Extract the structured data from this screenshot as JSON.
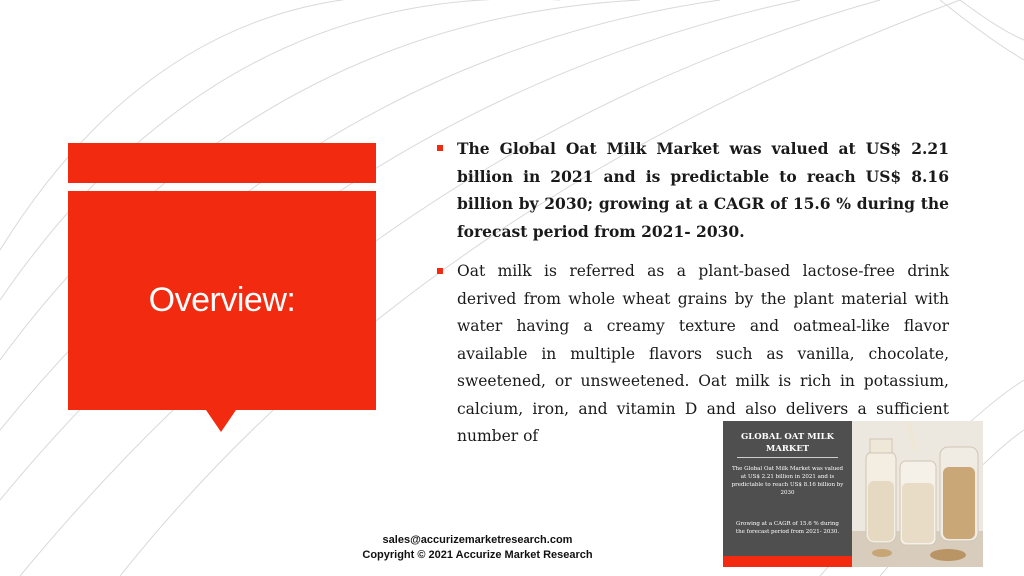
{
  "slide": {
    "title": "Overview:",
    "bullets": [
      "The Global Oat Milk Market was valued at US$ 2.21 billion in 2021 and is predictable to reach US$ 8.16 billion by 2030; growing at a CAGR of 15.6 % during the forecast period from 2021- 2030.",
      "Oat milk is referred as a plant-based lactose-free drink derived from whole wheat grains by the plant material with water having a creamy texture and oatmeal-like flavor available in multiple flavors such as vanilla, chocolate, sweetened, or unsweetened. Oat milk is rich in potassium, calcium, iron, and vitamin D and also delivers a sufficient number of"
    ]
  },
  "footer": {
    "email": "sales@accurizemarketresearch.com",
    "copyright": "Copyright © 2021 Accurize Market Research"
  },
  "infographic": {
    "title": "GLOBAL OAT MILK MARKET",
    "text1": "The Global Oat Milk Market was valued at US$ 2.21 billion in 2021 and is predictable to reach US$ 8.16 billion by 2030",
    "text2": "Growing at a CAGR of 15.6 % during the forecast period from 2021- 2030."
  },
  "colors": {
    "accent": "#f22a0f",
    "infographic_panel": "#4f4f4f"
  }
}
